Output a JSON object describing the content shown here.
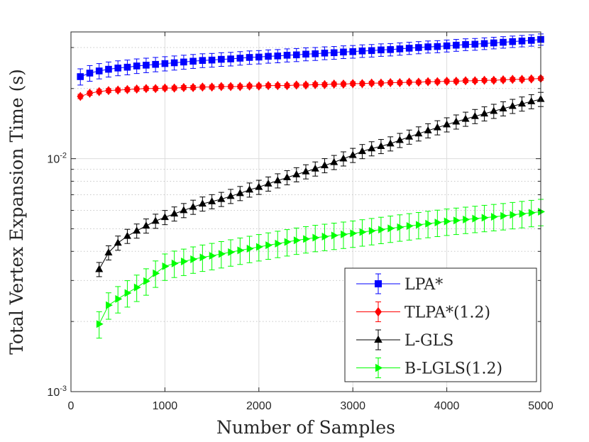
{
  "chart_data": {
    "type": "line",
    "title": "",
    "xlabel": "Number of Samples",
    "ylabel": "Total Vertex Expansion Time (s)",
    "xlim": [
      0,
      5000
    ],
    "ylim": [
      0.001,
      0.035
    ],
    "yscale": "log",
    "grid": true,
    "legend_position": "bottom-right",
    "x_ticks": [
      0,
      1000,
      2000,
      3000,
      4000,
      5000
    ],
    "x_tick_labels": [
      "0",
      "1000",
      "2000",
      "3000",
      "4000",
      "5000"
    ],
    "y_tick_labels": [
      {
        "base": "10",
        "exp": "-3",
        "value": 0.001
      },
      {
        "base": "10",
        "exp": "-2",
        "value": 0.01
      }
    ],
    "series": [
      {
        "name": "LPA*",
        "color": "#0000ff",
        "marker": "square",
        "x": [
          100,
          200,
          300,
          400,
          500,
          600,
          700,
          800,
          900,
          1000,
          1100,
          1200,
          1300,
          1400,
          1500,
          1600,
          1700,
          1800,
          1900,
          2000,
          2100,
          2200,
          2300,
          2400,
          2500,
          2600,
          2700,
          2800,
          2900,
          3000,
          3100,
          3200,
          3300,
          3400,
          3500,
          3600,
          3700,
          3800,
          3900,
          4000,
          4100,
          4200,
          4300,
          4400,
          4500,
          4600,
          4700,
          4800,
          4900,
          5000
        ],
        "values": [
          0.0225,
          0.0233,
          0.0238,
          0.0242,
          0.0245,
          0.0247,
          0.025,
          0.0252,
          0.0254,
          0.0256,
          0.0258,
          0.026,
          0.0262,
          0.0264,
          0.0265,
          0.0267,
          0.0268,
          0.027,
          0.0272,
          0.0273,
          0.0275,
          0.0276,
          0.0278,
          0.0279,
          0.0281,
          0.0282,
          0.0284,
          0.0285,
          0.0287,
          0.0288,
          0.029,
          0.0291,
          0.0293,
          0.0294,
          0.0296,
          0.0298,
          0.03,
          0.0302,
          0.0303,
          0.0305,
          0.0307,
          0.0309,
          0.031,
          0.0312,
          0.0314,
          0.0316,
          0.0318,
          0.032,
          0.0322,
          0.0325
        ],
        "error": 0.0018
      },
      {
        "name": "TLPA*(1.2)",
        "color": "#ff0000",
        "marker": "diamond",
        "x": [
          100,
          200,
          300,
          400,
          500,
          600,
          700,
          800,
          900,
          1000,
          1100,
          1200,
          1300,
          1400,
          1500,
          1600,
          1700,
          1800,
          1900,
          2000,
          2100,
          2200,
          2300,
          2400,
          2500,
          2600,
          2700,
          2800,
          2900,
          3000,
          3100,
          3200,
          3300,
          3400,
          3500,
          3600,
          3700,
          3800,
          3900,
          4000,
          4100,
          4200,
          4300,
          4400,
          4500,
          4600,
          4700,
          4800,
          4900,
          5000
        ],
        "values": [
          0.0185,
          0.0191,
          0.0194,
          0.0196,
          0.0197,
          0.0198,
          0.0199,
          0.02,
          0.02,
          0.0201,
          0.0201,
          0.0202,
          0.0202,
          0.0203,
          0.0203,
          0.0204,
          0.0204,
          0.0204,
          0.0205,
          0.0205,
          0.0206,
          0.0206,
          0.0206,
          0.0207,
          0.0207,
          0.0208,
          0.0208,
          0.0209,
          0.0209,
          0.021,
          0.021,
          0.0211,
          0.0211,
          0.0212,
          0.0212,
          0.0213,
          0.0213,
          0.0214,
          0.0214,
          0.0215,
          0.0215,
          0.0216,
          0.0216,
          0.0217,
          0.0217,
          0.0218,
          0.0219,
          0.0219,
          0.022,
          0.0221
        ],
        "error": 0.0004
      },
      {
        "name": "L-GLS",
        "color": "#000000",
        "marker": "triangle-up",
        "x": [
          300,
          400,
          500,
          600,
          700,
          800,
          900,
          1000,
          1100,
          1200,
          1300,
          1400,
          1500,
          1600,
          1700,
          1800,
          1900,
          2000,
          2100,
          2200,
          2300,
          2400,
          2500,
          2600,
          2700,
          2800,
          2900,
          3000,
          3100,
          3200,
          3300,
          3400,
          3500,
          3600,
          3700,
          3800,
          3900,
          4000,
          4100,
          4200,
          4300,
          4400,
          4500,
          4600,
          4700,
          4800,
          4900,
          5000
        ],
        "values": [
          0.00335,
          0.00395,
          0.00435,
          0.00465,
          0.0049,
          0.00515,
          0.0054,
          0.0056,
          0.0058,
          0.006,
          0.0062,
          0.0064,
          0.00655,
          0.0067,
          0.0069,
          0.0071,
          0.00735,
          0.00755,
          0.0078,
          0.00805,
          0.0083,
          0.00855,
          0.0088,
          0.00905,
          0.00935,
          0.00965,
          0.01,
          0.01035,
          0.01075,
          0.01105,
          0.0113,
          0.0116,
          0.012,
          0.0124,
          0.0128,
          0.0132,
          0.0136,
          0.014,
          0.0144,
          0.0148,
          0.0152,
          0.0156,
          0.016,
          0.0164,
          0.0168,
          0.0172,
          0.0176,
          0.018
        ],
        "error_frac": 0.07
      },
      {
        "name": "B-LGLS(1.2)",
        "color": "#00ff00",
        "marker": "triangle-right",
        "x": [
          300,
          400,
          500,
          600,
          700,
          800,
          900,
          1000,
          1100,
          1200,
          1300,
          1400,
          1500,
          1600,
          1700,
          1800,
          1900,
          2000,
          2100,
          2200,
          2300,
          2400,
          2500,
          2600,
          2700,
          2800,
          2900,
          3000,
          3100,
          3200,
          3300,
          3400,
          3500,
          3600,
          3700,
          3800,
          3900,
          4000,
          4100,
          4200,
          4300,
          4400,
          4500,
          4600,
          4700,
          4800,
          4900,
          5000
        ],
        "values": [
          0.00195,
          0.00235,
          0.0025,
          0.00265,
          0.0028,
          0.00298,
          0.00322,
          0.00345,
          0.00355,
          0.00362,
          0.0037,
          0.00377,
          0.00383,
          0.0039,
          0.00397,
          0.00404,
          0.00411,
          0.00418,
          0.00425,
          0.00432,
          0.00439,
          0.00446,
          0.00452,
          0.00458,
          0.00463,
          0.00468,
          0.00473,
          0.00478,
          0.00484,
          0.0049,
          0.00496,
          0.00502,
          0.00508,
          0.00514,
          0.0052,
          0.00526,
          0.00532,
          0.00538,
          0.00543,
          0.00548,
          0.00553,
          0.00558,
          0.00563,
          0.00568,
          0.00574,
          0.0058,
          0.00586,
          0.00592
        ],
        "error_frac": 0.13
      }
    ]
  }
}
